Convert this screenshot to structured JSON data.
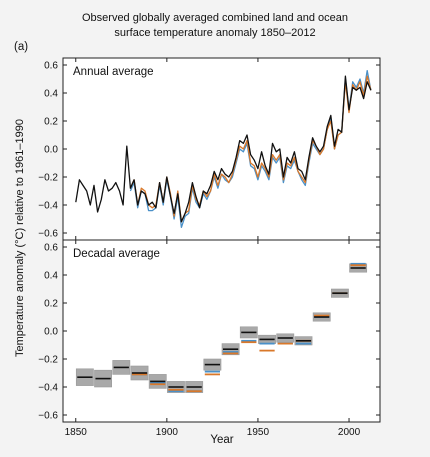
{
  "figure": {
    "panel_label": "(a)",
    "title_line1": "Observed globally averaged combined land and ocean",
    "title_line2": "surface temperature anomaly 1850–2012",
    "ylabel": "Temperature anomaly (°C) relative to 1961–1990",
    "xlabel": "Year",
    "colors": {
      "black": "#111111",
      "orange": "#d9782a",
      "blue": "#4a90c8",
      "box": "#a9a9a9",
      "box_edge": "#9a9a9a"
    }
  },
  "chart_data": [
    {
      "type": "line",
      "title": "Annual average",
      "xlim": [
        1843,
        2017
      ],
      "ylim": [
        -0.65,
        0.65
      ],
      "xticks": [
        1850,
        1900,
        1950,
        2000
      ],
      "yticks": [
        -0.6,
        -0.4,
        -0.2,
        0.0,
        0.2,
        0.4,
        0.6
      ],
      "ytick_labels": [
        "−0.6",
        "−0.4",
        "−0.2",
        "0.0",
        "0.2",
        "0.4",
        "0.6"
      ],
      "grid": false,
      "series": [
        {
          "color": "black",
          "x": [
            1850,
            1852,
            1854,
            1856,
            1858,
            1860,
            1862,
            1864,
            1866,
            1868,
            1870,
            1872,
            1874,
            1876,
            1878,
            1880,
            1882,
            1884,
            1886,
            1888,
            1890,
            1892,
            1894,
            1896,
            1898,
            1900,
            1902,
            1904,
            1906,
            1908,
            1910,
            1912,
            1914,
            1916,
            1918,
            1920,
            1922,
            1924,
            1926,
            1928,
            1930,
            1932,
            1934,
            1936,
            1938,
            1940,
            1942,
            1944,
            1946,
            1948,
            1950,
            1952,
            1954,
            1956,
            1958,
            1960,
            1962,
            1964,
            1966,
            1968,
            1970,
            1972,
            1974,
            1976,
            1978,
            1980,
            1982,
            1984,
            1986,
            1988,
            1990,
            1992,
            1994,
            1996,
            1998,
            2000,
            2002,
            2004,
            2006,
            2008,
            2010,
            2012
          ],
          "y": [
            -0.38,
            -0.22,
            -0.26,
            -0.3,
            -0.4,
            -0.26,
            -0.45,
            -0.36,
            -0.22,
            -0.3,
            -0.28,
            -0.24,
            -0.3,
            -0.4,
            0.02,
            -0.28,
            -0.22,
            -0.4,
            -0.3,
            -0.32,
            -0.4,
            -0.38,
            -0.42,
            -0.24,
            -0.38,
            -0.2,
            -0.34,
            -0.46,
            -0.32,
            -0.52,
            -0.46,
            -0.38,
            -0.24,
            -0.34,
            -0.42,
            -0.3,
            -0.32,
            -0.26,
            -0.16,
            -0.22,
            -0.14,
            -0.18,
            -0.2,
            -0.16,
            -0.06,
            0.06,
            0.04,
            0.1,
            -0.04,
            -0.08,
            -0.14,
            -0.02,
            -0.12,
            -0.18,
            0.04,
            -0.02,
            0.0,
            -0.2,
            -0.06,
            -0.1,
            -0.02,
            -0.14,
            -0.16,
            -0.22,
            -0.06,
            0.08,
            0.02,
            -0.02,
            0.02,
            0.16,
            0.24,
            0.02,
            0.14,
            0.12,
            0.52,
            0.28,
            0.44,
            0.42,
            0.44,
            0.36,
            0.48,
            0.42
          ]
        },
        {
          "color": "orange",
          "x": [
            1880,
            1882,
            1884,
            1886,
            1888,
            1890,
            1892,
            1894,
            1896,
            1898,
            1900,
            1902,
            1904,
            1906,
            1908,
            1910,
            1912,
            1914,
            1916,
            1918,
            1920,
            1922,
            1924,
            1926,
            1928,
            1930,
            1932,
            1934,
            1936,
            1938,
            1940,
            1942,
            1944,
            1946,
            1948,
            1950,
            1952,
            1954,
            1956,
            1958,
            1960,
            1962,
            1964,
            1966,
            1968,
            1970,
            1972,
            1974,
            1976,
            1978,
            1980,
            1982,
            1984,
            1986,
            1988,
            1990,
            1992,
            1994,
            1996,
            1998,
            2000,
            2002,
            2004,
            2006,
            2008,
            2010,
            2012
          ],
          "y": [
            -0.28,
            -0.22,
            -0.4,
            -0.28,
            -0.3,
            -0.4,
            -0.42,
            -0.4,
            -0.24,
            -0.38,
            -0.2,
            -0.32,
            -0.48,
            -0.3,
            -0.52,
            -0.46,
            -0.44,
            -0.26,
            -0.36,
            -0.4,
            -0.3,
            -0.34,
            -0.3,
            -0.18,
            -0.26,
            -0.18,
            -0.2,
            -0.24,
            -0.18,
            -0.08,
            0.02,
            0.0,
            0.06,
            -0.1,
            -0.12,
            -0.2,
            -0.1,
            -0.14,
            -0.2,
            -0.04,
            -0.08,
            -0.04,
            -0.22,
            -0.1,
            -0.12,
            -0.06,
            -0.16,
            -0.2,
            -0.24,
            -0.08,
            0.06,
            0.02,
            -0.04,
            0.0,
            0.14,
            0.2,
            0.0,
            0.1,
            0.12,
            0.48,
            0.26,
            0.46,
            0.42,
            0.48,
            0.38,
            0.52,
            0.42
          ]
        },
        {
          "color": "blue",
          "x": [
            1880,
            1882,
            1884,
            1886,
            1888,
            1890,
            1892,
            1894,
            1896,
            1898,
            1900,
            1902,
            1904,
            1906,
            1908,
            1910,
            1912,
            1914,
            1916,
            1918,
            1920,
            1922,
            1924,
            1926,
            1928,
            1930,
            1932,
            1934,
            1936,
            1938,
            1940,
            1942,
            1944,
            1946,
            1948,
            1950,
            1952,
            1954,
            1956,
            1958,
            1960,
            1962,
            1964,
            1966,
            1968,
            1970,
            1972,
            1974,
            1976,
            1978,
            1980,
            1982,
            1984,
            1986,
            1988,
            1990,
            1992,
            1994,
            1996,
            1998,
            2000,
            2002,
            2004,
            2006,
            2008,
            2010,
            2012
          ],
          "y": [
            -0.3,
            -0.24,
            -0.42,
            -0.3,
            -0.32,
            -0.44,
            -0.44,
            -0.42,
            -0.26,
            -0.4,
            -0.22,
            -0.34,
            -0.5,
            -0.34,
            -0.56,
            -0.48,
            -0.46,
            -0.28,
            -0.38,
            -0.42,
            -0.32,
            -0.36,
            -0.3,
            -0.2,
            -0.28,
            -0.18,
            -0.22,
            -0.24,
            -0.2,
            -0.1,
            0.0,
            -0.02,
            0.04,
            -0.12,
            -0.14,
            -0.22,
            -0.12,
            -0.16,
            -0.22,
            -0.06,
            -0.1,
            -0.06,
            -0.24,
            -0.12,
            -0.14,
            -0.08,
            -0.16,
            -0.22,
            -0.26,
            -0.1,
            0.04,
            0.0,
            -0.04,
            0.0,
            0.14,
            0.22,
            0.0,
            0.1,
            0.12,
            0.5,
            0.28,
            0.48,
            0.44,
            0.5,
            0.4,
            0.56,
            0.42
          ]
        }
      ]
    },
    {
      "type": "line",
      "title": "Decadal average",
      "xlim": [
        1843,
        2017
      ],
      "ylim": [
        -0.65,
        0.65
      ],
      "xticks": [
        1850,
        1900,
        1950,
        2000
      ],
      "xtick_labels": [
        "1850",
        "1900",
        "1950",
        "2000"
      ],
      "yticks": [
        -0.6,
        -0.4,
        -0.2,
        0.0,
        0.2,
        0.4,
        0.6
      ],
      "ytick_labels": [
        "−0.6",
        "−0.4",
        "−0.2",
        "0.0",
        "0.2",
        "0.4",
        "0.6"
      ],
      "grid": false,
      "decades": [
        {
          "start": 1850,
          "end": 1860,
          "black": -0.33,
          "unc": 0.06
        },
        {
          "start": 1860,
          "end": 1870,
          "black": -0.34,
          "unc": 0.06
        },
        {
          "start": 1870,
          "end": 1880,
          "black": -0.26,
          "unc": 0.05
        },
        {
          "start": 1880,
          "end": 1890,
          "black": -0.3,
          "orange": -0.31,
          "blue": -0.31,
          "unc": 0.05
        },
        {
          "start": 1890,
          "end": 1900,
          "black": -0.36,
          "orange": -0.38,
          "blue": -0.37,
          "unc": 0.05
        },
        {
          "start": 1900,
          "end": 1910,
          "black": -0.4,
          "orange": -0.42,
          "blue": -0.43,
          "unc": 0.04
        },
        {
          "start": 1910,
          "end": 1920,
          "black": -0.4,
          "orange": -0.43,
          "blue": -0.43,
          "unc": 0.04
        },
        {
          "start": 1920,
          "end": 1930,
          "black": -0.24,
          "orange": -0.31,
          "blue": -0.29,
          "unc": 0.04
        },
        {
          "start": 1930,
          "end": 1940,
          "black": -0.13,
          "orange": -0.16,
          "blue": -0.15,
          "unc": 0.04
        },
        {
          "start": 1940,
          "end": 1950,
          "black": -0.01,
          "orange": -0.08,
          "blue": -0.07,
          "unc": 0.04
        },
        {
          "start": 1950,
          "end": 1960,
          "black": -0.06,
          "orange": -0.14,
          "blue": -0.09,
          "unc": 0.03
        },
        {
          "start": 1960,
          "end": 1970,
          "black": -0.05,
          "orange": -0.09,
          "blue": -0.09,
          "unc": 0.03
        },
        {
          "start": 1970,
          "end": 1980,
          "black": -0.07,
          "orange": -0.07,
          "blue": -0.09,
          "unc": 0.03
        },
        {
          "start": 1980,
          "end": 1990,
          "black": 0.1,
          "orange": 0.11,
          "blue": 0.1,
          "unc": 0.03
        },
        {
          "start": 1990,
          "end": 2000,
          "black": 0.27,
          "orange": 0.27,
          "blue": 0.27,
          "unc": 0.03
        },
        {
          "start": 2000,
          "end": 2010,
          "black": 0.45,
          "orange": 0.47,
          "blue": 0.48,
          "unc": 0.03
        }
      ]
    }
  ]
}
